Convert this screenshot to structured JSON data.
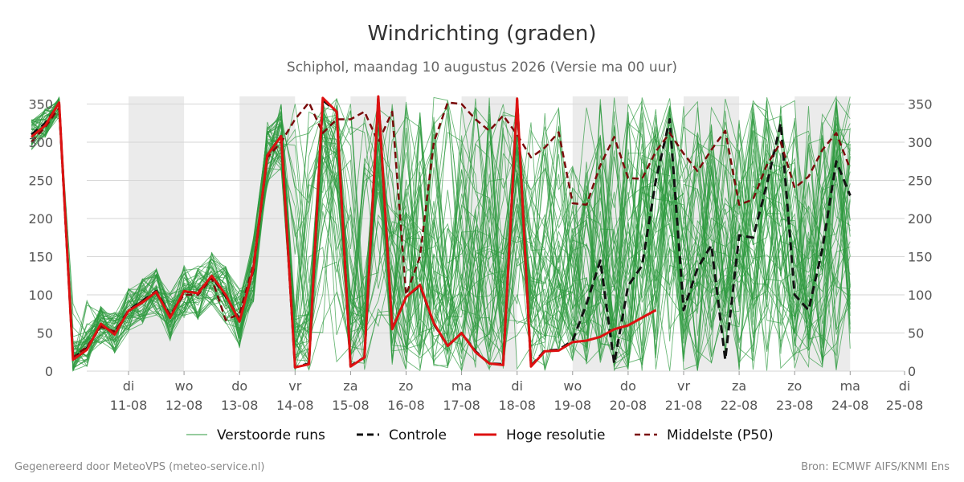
{
  "title": "Windrichting (graden)",
  "subtitle": "Schiphol, maandag 10 augustus 2026 (Versie ma 00 uur)",
  "footer_left": "Gegenereerd door MeteoVPS (meteo-service.nl)",
  "footer_right": "Bron: ECMWF AIFS/KNMI Ens",
  "chart_data": {
    "type": "line",
    "ylim": [
      0,
      360
    ],
    "yticks": [
      0,
      50,
      100,
      150,
      200,
      250,
      300,
      350
    ],
    "xlim": [
      -0.75,
      14.0
    ],
    "xticks": [
      {
        "x": 1,
        "day": "di",
        "date": "11-08"
      },
      {
        "x": 2,
        "day": "wo",
        "date": "12-08"
      },
      {
        "x": 3,
        "day": "do",
        "date": "13-08"
      },
      {
        "x": 4,
        "day": "vr",
        "date": "14-08"
      },
      {
        "x": 5,
        "day": "za",
        "date": "15-08"
      },
      {
        "x": 6,
        "day": "zo",
        "date": "16-08"
      },
      {
        "x": 7,
        "day": "ma",
        "date": "17-08"
      },
      {
        "x": 8,
        "day": "di",
        "date": "18-08"
      },
      {
        "x": 9,
        "day": "wo",
        "date": "19-08"
      },
      {
        "x": 10,
        "day": "do",
        "date": "20-08"
      },
      {
        "x": 11,
        "day": "vr",
        "date": "21-08"
      },
      {
        "x": 12,
        "day": "za",
        "date": "22-08"
      },
      {
        "x": 13,
        "day": "zo",
        "date": "23-08"
      },
      {
        "x": 14,
        "day": "ma",
        "date": "24-08"
      },
      {
        "x": 15,
        "day": "di",
        "date": "25-08"
      }
    ],
    "shaded_spans": [
      [
        1,
        2
      ],
      [
        3,
        4
      ],
      [
        5,
        6
      ],
      [
        7,
        8
      ],
      [
        9,
        10
      ],
      [
        11,
        12
      ],
      [
        13,
        14
      ]
    ],
    "grid": true,
    "legend": "bottom",
    "colors": {
      "ensemble": "#2e9a3e",
      "controle": "#111111",
      "hoge_resolutie": "#dd1111",
      "p50": "#7a0a0a",
      "shade": "#ebebeb"
    },
    "series": [
      {
        "name": "Hoge resolutie",
        "style": "solid",
        "x": [
          -0.75,
          -0.5,
          -0.25,
          0,
          0.25,
          0.5,
          0.75,
          1,
          1.25,
          1.5,
          1.75,
          2,
          2.25,
          2.5,
          2.75,
          3,
          3.25,
          3.5,
          3.75,
          4,
          4.25,
          4.5,
          4.75,
          5,
          5.25,
          5.5,
          5.75,
          6,
          6.25,
          6.5,
          6.75,
          7,
          7.25,
          7.5,
          7.75,
          8,
          8.25,
          8.5,
          8.75,
          9,
          9.25,
          9.5,
          9.75,
          10,
          10.25,
          10.5
        ],
        "y": [
          307,
          322,
          352,
          15,
          28,
          62,
          48,
          79,
          90,
          104,
          70,
          105,
          102,
          125,
          100,
          65,
          135,
          283,
          308,
          5,
          9,
          358,
          340,
          6,
          18,
          360,
          55,
          97,
          113,
          63,
          33,
          50,
          25,
          10,
          8,
          357,
          6,
          26,
          27,
          38,
          40,
          45,
          55,
          60,
          70,
          80
        ]
      },
      {
        "name": "Controle",
        "style": "dashed",
        "x": [
          -0.75,
          -0.5,
          -0.25,
          0,
          0.25,
          0.5,
          0.75,
          1,
          1.25,
          1.5,
          1.75,
          2,
          2.25,
          2.5,
          2.75,
          3,
          3.25,
          3.5,
          3.75,
          4,
          4.25,
          4.5,
          4.75,
          5,
          5.25,
          5.5,
          5.75,
          6,
          6.25,
          6.5,
          6.75,
          7,
          7.25,
          7.5,
          7.75,
          8,
          8.25,
          8.5,
          8.75,
          9,
          9.25,
          9.5,
          9.75,
          10,
          10.25,
          10.5,
          10.75,
          11,
          11.25,
          11.5,
          11.75,
          12,
          12.25,
          12.5,
          12.75,
          13,
          13.25,
          13.5,
          13.75,
          14
        ],
        "y": [
          310,
          325,
          350,
          17,
          30,
          60,
          50,
          80,
          92,
          105,
          72,
          104,
          103,
          124,
          98,
          68,
          133,
          283,
          308,
          5,
          10,
          355,
          340,
          7,
          18,
          358,
          55,
          97,
          112,
          62,
          33,
          50,
          26,
          10,
          9,
          355,
          7,
          27,
          28,
          40,
          88,
          145,
          10,
          112,
          138,
          250,
          330,
          80,
          135,
          165,
          15,
          178,
          175,
          245,
          325,
          100,
          80,
          160,
          275,
          230
        ]
      },
      {
        "name": "Middelste (P50)",
        "style": "dashed",
        "x": [
          -0.75,
          -0.5,
          -0.25,
          0,
          0.25,
          0.5,
          0.75,
          1,
          1.25,
          1.5,
          1.75,
          2,
          2.25,
          2.5,
          2.75,
          3,
          3.25,
          3.5,
          3.75,
          4,
          4.25,
          4.5,
          4.75,
          5,
          5.25,
          5.5,
          5.75,
          6,
          6.25,
          6.5,
          6.75,
          7,
          7.25,
          7.5,
          7.75,
          8,
          8.25,
          8.5,
          8.75,
          9,
          9.25,
          9.5,
          9.75,
          10,
          10.25,
          10.5,
          10.75,
          11,
          11.25,
          11.5,
          11.75,
          12,
          12.25,
          12.5,
          12.75,
          13,
          13.25,
          13.5,
          13.75,
          14
        ],
        "y": [
          300,
          320,
          345,
          18,
          32,
          58,
          52,
          78,
          92,
          102,
          74,
          100,
          100,
          122,
          67,
          75,
          140,
          280,
          300,
          330,
          352,
          312,
          330,
          330,
          340,
          300,
          340,
          100,
          150,
          300,
          352,
          350,
          330,
          315,
          335,
          310,
          280,
          293,
          313,
          220,
          218,
          270,
          307,
          253,
          252,
          288,
          312,
          285,
          262,
          290,
          315,
          218,
          225,
          270,
          300,
          240,
          255,
          290,
          312,
          265
        ]
      }
    ],
    "ensemble_member_count": 50
  },
  "legend": [
    {
      "key": "ensemble",
      "label": "Verstoorde runs"
    },
    {
      "key": "controle",
      "label": "Controle"
    },
    {
      "key": "hoge_resolutie",
      "label": "Hoge resolutie"
    },
    {
      "key": "p50",
      "label": "Middelste (P50)"
    }
  ]
}
